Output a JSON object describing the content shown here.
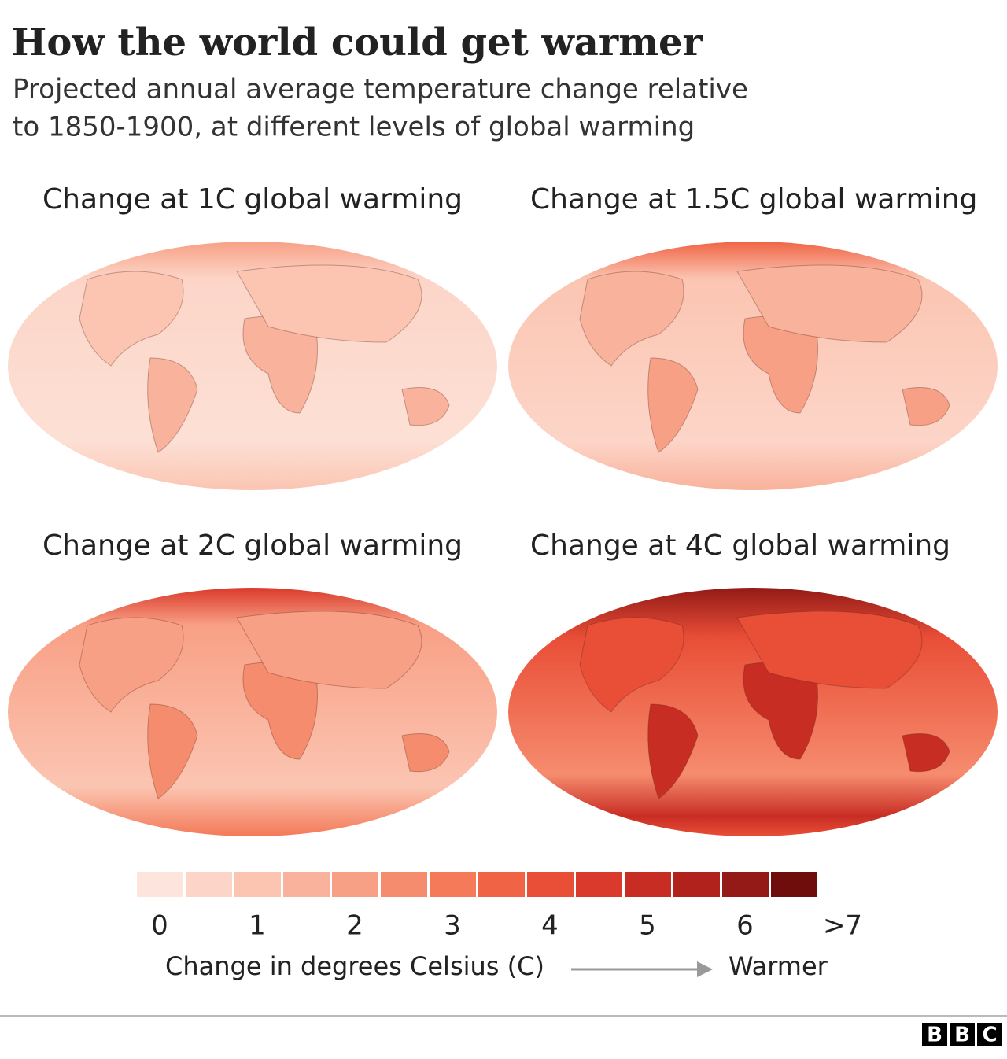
{
  "header": {
    "title": "How the world could get warmer",
    "subtitle": [
      "Projected annual average temperature change relative",
      "to 1850-1900, at different levels of global warming"
    ]
  },
  "panels": [
    {
      "title": "Change at 1C global warming"
    },
    {
      "title": "Change at 1.5C global warming"
    },
    {
      "title": "Change at 2C global warming"
    },
    {
      "title": "Change at 4C global warming"
    }
  ],
  "legend": {
    "colors": [
      "#fde4dc",
      "#fcd5c8",
      "#fbc5b2",
      "#f9b29b",
      "#f8a085",
      "#f68c6e",
      "#f47a59",
      "#f06445",
      "#e94e37",
      "#da3a2b",
      "#c82d23",
      "#b1221c",
      "#931a16",
      "#6e0d0c"
    ],
    "ticks": [
      0,
      1,
      2,
      3,
      4,
      5,
      6,
      {
        "value": 7,
        "label": ">7"
      }
    ],
    "axis_label": "Change in degrees Celsius (C)",
    "direction_label": "Warmer"
  },
  "footer": {
    "logo": [
      "B",
      "B",
      "C"
    ]
  }
}
